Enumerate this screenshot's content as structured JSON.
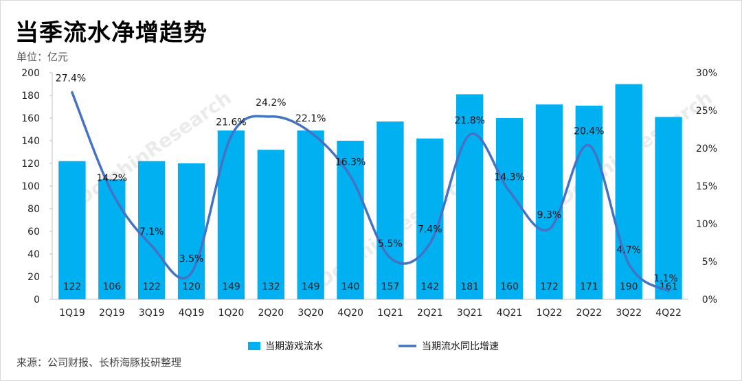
{
  "title": "当季流水净增趋势",
  "unit": "单位：亿元",
  "source": "来源：公司财报、长桥海豚投研整理",
  "colors": {
    "bar": "#00b0f0",
    "line": "#4472c4"
  },
  "chart_data": {
    "type": "bar",
    "categories": [
      "1Q19",
      "2Q19",
      "3Q19",
      "4Q19",
      "1Q20",
      "2Q20",
      "3Q20",
      "4Q20",
      "1Q21",
      "2Q21",
      "3Q21",
      "4Q21",
      "1Q22",
      "2Q22",
      "3Q22",
      "4Q22"
    ],
    "series": [
      {
        "name": "当期游戏流水",
        "type": "bar",
        "axis": "left",
        "values": [
          122,
          106,
          122,
          120,
          149,
          132,
          149,
          140,
          157,
          142,
          181,
          160,
          172,
          171,
          190,
          161
        ],
        "labels": [
          "122",
          "106",
          "122",
          "120",
          "149",
          "132",
          "149",
          "140",
          "157",
          "142",
          "181",
          "160",
          "172",
          "171",
          "190",
          "161"
        ]
      },
      {
        "name": "当期流水同比增速",
        "type": "line",
        "axis": "right",
        "values": [
          27.4,
          14.2,
          7.1,
          3.5,
          21.6,
          24.2,
          22.1,
          16.3,
          5.5,
          7.4,
          21.8,
          14.3,
          9.3,
          20.4,
          4.7,
          1.1
        ],
        "labels": [
          "27.4%",
          "14.2%",
          "7.1%",
          "3.5%",
          "21.6%",
          "24.2%",
          "22.1%",
          "16.3%",
          "5.5%",
          "7.4%",
          "21.8%",
          "14.3%",
          "9.3%",
          "20.4%",
          "4.7%",
          "1.1%"
        ]
      }
    ],
    "y_left": {
      "ylim": [
        0,
        200
      ],
      "ticks": [
        "0",
        "20",
        "40",
        "60",
        "80",
        "100",
        "120",
        "140",
        "160",
        "180",
        "200"
      ]
    },
    "y_right": {
      "ylim": [
        0,
        30
      ],
      "ticks": [
        "0%",
        "5%",
        "10%",
        "15%",
        "20%",
        "25%",
        "30%"
      ]
    },
    "legend_position": "bottom",
    "grid": false
  }
}
